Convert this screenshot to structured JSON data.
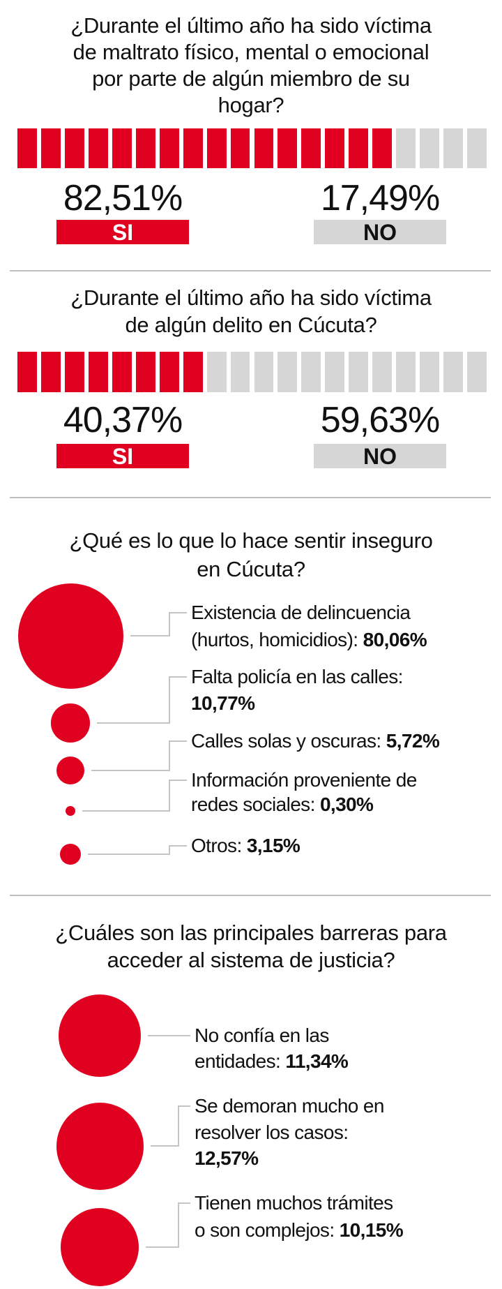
{
  "colors": {
    "accent": "#e0001f",
    "inactive": "#d6d6d6",
    "divider": "#bdbdbd"
  },
  "chart_data": [
    {
      "type": "bar",
      "title_lines": [
        "¿Durante el último año ha sido víctima",
        "de maltrato físico, mental o emocional",
        "por parte de algún miembro de su",
        "hogar?"
      ],
      "categories": [
        "SI",
        "NO"
      ],
      "values": [
        82.51,
        17.49
      ],
      "value_labels": [
        "82,51%",
        "17,49%"
      ],
      "segments": 20
    },
    {
      "type": "bar",
      "title_lines": [
        "¿Durante el último año  ha sido víctima",
        "de algún delito en Cúcuta?"
      ],
      "categories": [
        "SI",
        "NO"
      ],
      "values": [
        40.37,
        59.63
      ],
      "value_labels": [
        "40,37%",
        "59,63%"
      ],
      "segments": 20
    },
    {
      "type": "bubble",
      "title_lines": [
        "¿Qué es lo que lo hace sentir inseguro",
        "en Cúcuta?"
      ],
      "items": [
        {
          "value": 80.06,
          "lines": [
            {
              "t": "Existencia de delincuencia"
            },
            {
              "t": "(hurtos, homicidios): ",
              "b": "80,06%"
            }
          ]
        },
        {
          "value": 10.77,
          "lines": [
            {
              "t": "Falta policía en las calles:"
            },
            {
              "t": "",
              "b": "10,77%"
            }
          ]
        },
        {
          "value": 5.72,
          "lines": [
            {
              "t": "Calles solas y oscuras: ",
              "b": "5,72%"
            }
          ]
        },
        {
          "value": 0.3,
          "lines": [
            {
              "t": "Información proveniente de"
            },
            {
              "t": "redes sociales: ",
              "b": "0,30%"
            }
          ]
        },
        {
          "value": 3.15,
          "lines": [
            {
              "t": "Otros: ",
              "b": "3,15%"
            }
          ]
        }
      ]
    },
    {
      "type": "bubble",
      "title_lines": [
        "¿Cuáles son las principales barreras para",
        "acceder al sistema de justicia?"
      ],
      "items": [
        {
          "value": 11.34,
          "lines": [
            {
              "t": "No confía en las"
            },
            {
              "t": "entidades: ",
              "b": "11,34%"
            }
          ]
        },
        {
          "value": 12.57,
          "lines": [
            {
              "t": "Se demoran mucho en"
            },
            {
              "t": "resolver los casos:"
            },
            {
              "t": "",
              "b": "12,57%"
            }
          ]
        },
        {
          "value": 10.15,
          "lines": [
            {
              "t": "Tienen muchos trámites"
            },
            {
              "t": "o son complejos: ",
              "b": "10,15%"
            }
          ]
        }
      ]
    }
  ]
}
